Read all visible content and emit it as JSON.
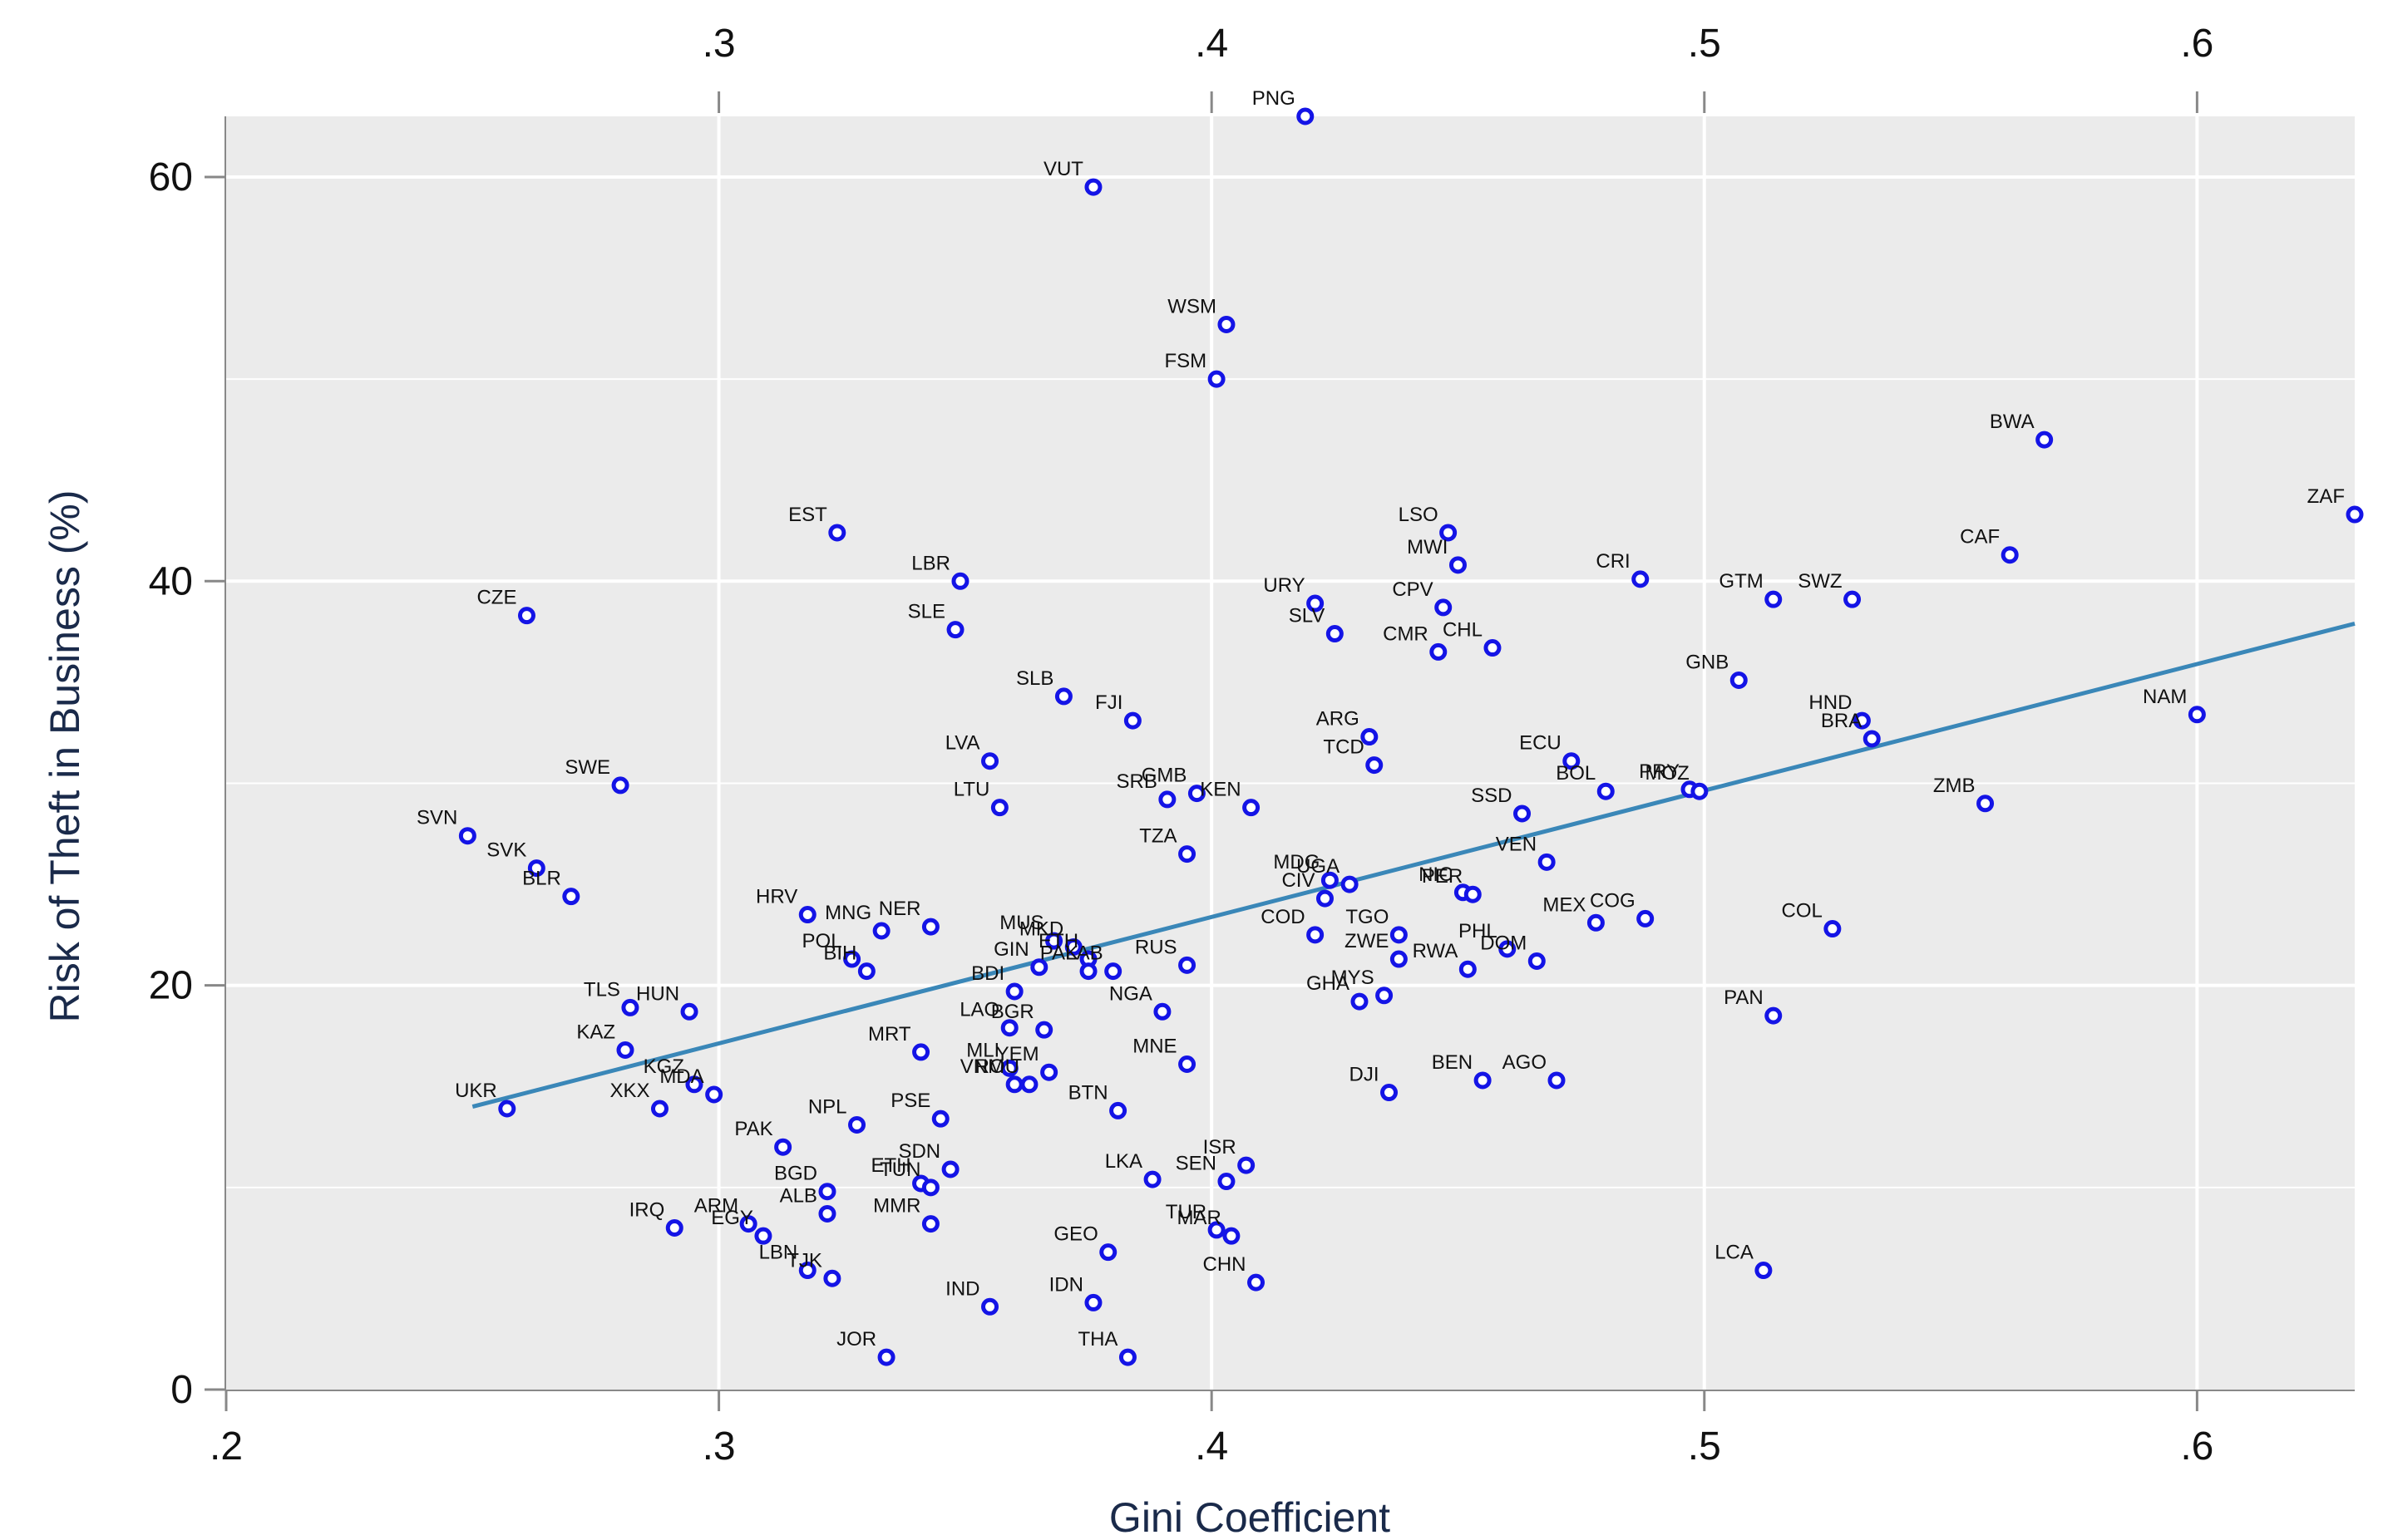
{
  "chart_data": {
    "type": "scatter",
    "title": "",
    "xlabel": "Gini Coefficient",
    "ylabel": "Risk of Theft in Business (%)",
    "xlim": [
      0.2,
      0.632
    ],
    "ylim": [
      0,
      63
    ],
    "x_ticks": [
      {
        "value": 0.2,
        "label": ".2"
      },
      {
        "value": 0.3,
        "label": ".3"
      },
      {
        "value": 0.4,
        "label": ".4"
      },
      {
        "value": 0.5,
        "label": ".5"
      },
      {
        "value": 0.6,
        "label": ".6"
      }
    ],
    "x_ticks_top": [
      {
        "value": 0.3,
        "label": ".3"
      },
      {
        "value": 0.4,
        "label": ".4"
      },
      {
        "value": 0.5,
        "label": ".5"
      },
      {
        "value": 0.6,
        "label": ".6"
      }
    ],
    "y_ticks": [
      {
        "value": 0,
        "label": "0"
      },
      {
        "value": 20,
        "label": "20"
      },
      {
        "value": 40,
        "label": "40"
      },
      {
        "value": 60,
        "label": "60"
      }
    ],
    "y_minor_gridlines": [
      10,
      30,
      50
    ],
    "grid": true,
    "colors": {
      "plot_background": "#ebebeb",
      "gridline": "#ffffff",
      "marker": "#1414e6",
      "fit_line": "#3a87b8"
    },
    "fit_line": {
      "x": [
        0.25,
        0.632
      ],
      "y": [
        14.0,
        37.9
      ]
    },
    "points": [
      {
        "label": "PNG",
        "x": 0.419,
        "y": 63.0
      },
      {
        "label": "VUT",
        "x": 0.376,
        "y": 59.5
      },
      {
        "label": "WSM",
        "x": 0.403,
        "y": 52.7
      },
      {
        "label": "FSM",
        "x": 0.401,
        "y": 50.0
      },
      {
        "label": "BWA",
        "x": 0.569,
        "y": 47.0
      },
      {
        "label": "ZAF",
        "x": 0.632,
        "y": 43.3
      },
      {
        "label": "EST",
        "x": 0.324,
        "y": 42.4
      },
      {
        "label": "LSO",
        "x": 0.448,
        "y": 42.4
      },
      {
        "label": "CAF",
        "x": 0.562,
        "y": 41.3
      },
      {
        "label": "MWI",
        "x": 0.45,
        "y": 40.8
      },
      {
        "label": "CRI",
        "x": 0.487,
        "y": 40.1
      },
      {
        "label": "LBR",
        "x": 0.349,
        "y": 40.0
      },
      {
        "label": "GTM",
        "x": 0.514,
        "y": 39.1
      },
      {
        "label": "SWZ",
        "x": 0.53,
        "y": 39.1
      },
      {
        "label": "URY",
        "x": 0.421,
        "y": 38.9
      },
      {
        "label": "CPV",
        "x": 0.447,
        "y": 38.7
      },
      {
        "label": "CZE",
        "x": 0.261,
        "y": 38.3
      },
      {
        "label": "SLE",
        "x": 0.348,
        "y": 37.6
      },
      {
        "label": "SLV",
        "x": 0.425,
        "y": 37.4
      },
      {
        "label": "CMR",
        "x": 0.446,
        "y": 36.5
      },
      {
        "label": "CHL",
        "x": 0.457,
        "y": 36.7
      },
      {
        "label": "GNB",
        "x": 0.507,
        "y": 35.1
      },
      {
        "label": "SLB",
        "x": 0.37,
        "y": 34.3
      },
      {
        "label": "NAM",
        "x": 0.6,
        "y": 33.4
      },
      {
        "label": "HND",
        "x": 0.532,
        "y": 33.1
      },
      {
        "label": "FJI",
        "x": 0.384,
        "y": 33.1
      },
      {
        "label": "ARG",
        "x": 0.432,
        "y": 32.3
      },
      {
        "label": "BRA",
        "x": 0.534,
        "y": 32.2
      },
      {
        "label": "LVA",
        "x": 0.355,
        "y": 31.1
      },
      {
        "label": "ECU",
        "x": 0.473,
        "y": 31.1
      },
      {
        "label": "TCD",
        "x": 0.433,
        "y": 30.9
      },
      {
        "label": "SWE",
        "x": 0.28,
        "y": 29.9
      },
      {
        "label": "PRY",
        "x": 0.497,
        "y": 29.7
      },
      {
        "label": "MOZ",
        "x": 0.499,
        "y": 29.6
      },
      {
        "label": "BOL",
        "x": 0.48,
        "y": 29.6
      },
      {
        "label": "GMB",
        "x": 0.397,
        "y": 29.5
      },
      {
        "label": "SRB",
        "x": 0.391,
        "y": 29.2
      },
      {
        "label": "ZMB",
        "x": 0.557,
        "y": 29.0
      },
      {
        "label": "LTU",
        "x": 0.357,
        "y": 28.8
      },
      {
        "label": "KEN",
        "x": 0.408,
        "y": 28.8
      },
      {
        "label": "SSD",
        "x": 0.463,
        "y": 28.5
      },
      {
        "label": "SVN",
        "x": 0.249,
        "y": 27.4
      },
      {
        "label": "TZA",
        "x": 0.395,
        "y": 26.5
      },
      {
        "label": "VEN",
        "x": 0.468,
        "y": 26.1
      },
      {
        "label": "SVK",
        "x": 0.263,
        "y": 25.8
      },
      {
        "label": "MDG",
        "x": 0.424,
        "y": 25.2
      },
      {
        "label": "UGA",
        "x": 0.428,
        "y": 25.0
      },
      {
        "label": "NIC",
        "x": 0.451,
        "y": 24.6
      },
      {
        "label": "PER",
        "x": 0.453,
        "y": 24.5
      },
      {
        "label": "BLR",
        "x": 0.27,
        "y": 24.4
      },
      {
        "label": "CIV",
        "x": 0.423,
        "y": 24.3
      },
      {
        "label": "HRV",
        "x": 0.318,
        "y": 23.5
      },
      {
        "label": "COG",
        "x": 0.488,
        "y": 23.3
      },
      {
        "label": "MEX",
        "x": 0.478,
        "y": 23.1
      },
      {
        "label": "NER",
        "x": 0.343,
        "y": 22.9
      },
      {
        "label": "COL",
        "x": 0.526,
        "y": 22.8
      },
      {
        "label": "MNG",
        "x": 0.333,
        "y": 22.7
      },
      {
        "label": "COD",
        "x": 0.421,
        "y": 22.5
      },
      {
        "label": "TGO",
        "x": 0.438,
        "y": 22.5
      },
      {
        "label": "MUS",
        "x": 0.368,
        "y": 22.2
      },
      {
        "label": "MKD",
        "x": 0.372,
        "y": 21.9
      },
      {
        "label": "PHL",
        "x": 0.46,
        "y": 21.8
      },
      {
        "label": "POL",
        "x": 0.327,
        "y": 21.3
      },
      {
        "label": "DOM",
        "x": 0.466,
        "y": 21.2
      },
      {
        "label": "ZWE",
        "x": 0.438,
        "y": 21.3
      },
      {
        "label": "ETH",
        "x": 0.375,
        "y": 21.3
      },
      {
        "label": "BIH",
        "x": 0.33,
        "y": 20.7
      },
      {
        "label": "GIN",
        "x": 0.365,
        "y": 20.9
      },
      {
        "label": "PAK2",
        "x": 0.375,
        "y": 20.7
      },
      {
        "label": "LAB",
        "x": 0.38,
        "y": 20.7
      },
      {
        "label": "RUS",
        "x": 0.395,
        "y": 21.0
      },
      {
        "label": "RWA",
        "x": 0.452,
        "y": 20.8
      },
      {
        "label": "BDI",
        "x": 0.36,
        "y": 19.7
      },
      {
        "label": "NGA",
        "x": 0.39,
        "y": 18.7
      },
      {
        "label": "MYS",
        "x": 0.435,
        "y": 19.5
      },
      {
        "label": "GHA",
        "x": 0.43,
        "y": 19.2
      },
      {
        "label": "TLS",
        "x": 0.282,
        "y": 18.9
      },
      {
        "label": "HUN",
        "x": 0.294,
        "y": 18.7
      },
      {
        "label": "PAN",
        "x": 0.514,
        "y": 18.5
      },
      {
        "label": "LAO",
        "x": 0.359,
        "y": 17.9
      },
      {
        "label": "BGR",
        "x": 0.366,
        "y": 17.8
      },
      {
        "label": "KAZ",
        "x": 0.281,
        "y": 16.8
      },
      {
        "label": "MRT",
        "x": 0.341,
        "y": 16.7
      },
      {
        "label": "MNE",
        "x": 0.395,
        "y": 16.1
      },
      {
        "label": "MLI",
        "x": 0.359,
        "y": 15.9
      },
      {
        "label": "YEM",
        "x": 0.367,
        "y": 15.7
      },
      {
        "label": "BEN",
        "x": 0.455,
        "y": 15.3
      },
      {
        "label": "AGO",
        "x": 0.47,
        "y": 15.3
      },
      {
        "label": "KGZ",
        "x": 0.295,
        "y": 15.1
      },
      {
        "label": "VNM",
        "x": 0.36,
        "y": 15.1
      },
      {
        "label": "ROU",
        "x": 0.363,
        "y": 15.1
      },
      {
        "label": "DJI",
        "x": 0.436,
        "y": 14.7
      },
      {
        "label": "MDA",
        "x": 0.299,
        "y": 14.6
      },
      {
        "label": "UKR",
        "x": 0.257,
        "y": 13.9
      },
      {
        "label": "XKX",
        "x": 0.288,
        "y": 13.9
      },
      {
        "label": "BTN",
        "x": 0.381,
        "y": 13.8
      },
      {
        "label": "PSE",
        "x": 0.345,
        "y": 13.4
      },
      {
        "label": "NPL",
        "x": 0.328,
        "y": 13.1
      },
      {
        "label": "PAK",
        "x": 0.313,
        "y": 12.0
      },
      {
        "label": "ISR",
        "x": 0.407,
        "y": 11.1
      },
      {
        "label": "SDN",
        "x": 0.347,
        "y": 10.9
      },
      {
        "label": "LKA",
        "x": 0.388,
        "y": 10.4
      },
      {
        "label": "SEN",
        "x": 0.403,
        "y": 10.3
      },
      {
        "label": "ETH2",
        "x": 0.341,
        "y": 10.2
      },
      {
        "label": "TUN",
        "x": 0.343,
        "y": 10.0
      },
      {
        "label": "BGD",
        "x": 0.322,
        "y": 9.8
      },
      {
        "label": "ALB",
        "x": 0.322,
        "y": 8.7
      },
      {
        "label": "MMR",
        "x": 0.343,
        "y": 8.2
      },
      {
        "label": "ARM",
        "x": 0.306,
        "y": 8.2
      },
      {
        "label": "IRQ",
        "x": 0.291,
        "y": 8.0
      },
      {
        "label": "TUR",
        "x": 0.401,
        "y": 7.9
      },
      {
        "label": "MAR",
        "x": 0.404,
        "y": 7.6
      },
      {
        "label": "EGY",
        "x": 0.309,
        "y": 7.6
      },
      {
        "label": "GEO",
        "x": 0.379,
        "y": 6.8
      },
      {
        "label": "LCA",
        "x": 0.512,
        "y": 5.9
      },
      {
        "label": "LBN",
        "x": 0.318,
        "y": 5.9
      },
      {
        "label": "TJK",
        "x": 0.323,
        "y": 5.5
      },
      {
        "label": "CHN",
        "x": 0.409,
        "y": 5.3
      },
      {
        "label": "IDN",
        "x": 0.376,
        "y": 4.3
      },
      {
        "label": "IND",
        "x": 0.355,
        "y": 4.1
      },
      {
        "label": "JOR",
        "x": 0.334,
        "y": 1.6
      },
      {
        "label": "THA",
        "x": 0.383,
        "y": 1.6
      }
    ]
  }
}
